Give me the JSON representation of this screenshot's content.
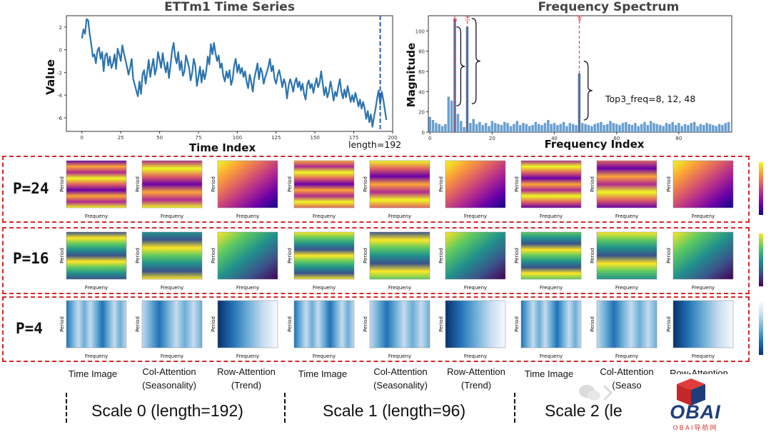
{
  "ts_chart": {
    "type": "line",
    "title": "ETTm1 Time Series",
    "xlabel": "Time Index",
    "ylabel": "Value",
    "xlim": [
      -10,
      200
    ],
    "ylim": [
      -7.2,
      3.0
    ],
    "xticks": [
      "0",
      "25",
      "50",
      "75",
      "100",
      "125",
      "150",
      "175",
      "200"
    ],
    "yticks": [
      "2",
      "0",
      "-2",
      "-4",
      "-6"
    ],
    "annotation": "length=192",
    "cutoff_x": 192,
    "values": [
      1.0,
      1.8,
      1.4,
      2.7,
      2.6,
      1.4,
      0.5,
      -0.6,
      -0.4,
      -1.2,
      -0.1,
      0.2,
      -0.8,
      -0.2,
      -1.9,
      -0.5,
      -0.3,
      -1.4,
      -0.6,
      -1.6,
      -1.2,
      -0.4,
      -1.7,
      0.1,
      -0.4,
      -1.0,
      0.4,
      -0.3,
      -0.9,
      -1.5,
      -2.2,
      -1.6,
      -0.8,
      -2.6,
      -3.1,
      -3.6,
      -4.1,
      -2.8,
      -3.9,
      -2.2,
      -1.8,
      -3.0,
      -2.0,
      -0.9,
      -2.4,
      -1.5,
      -0.8,
      -2.2,
      -1.6,
      -0.2,
      -0.9,
      -1.6,
      -0.3,
      -1.3,
      -2.0,
      -1.1,
      -2.5,
      -1.4,
      -0.1,
      0.6,
      -0.6,
      -1.2,
      -0.2,
      -1.8,
      -1.0,
      -2.3,
      -1.9,
      -0.5,
      -1.0,
      -1.6,
      -2.7,
      -2.0,
      -0.8,
      -1.4,
      -3.2,
      -2.4,
      -1.5,
      -2.9,
      -1.8,
      -2.6,
      -1.9,
      -0.6,
      -1.3,
      0.5,
      -0.4,
      0.6,
      -0.3,
      -1.0,
      -0.5,
      -1.6,
      -1.2,
      -2.3,
      -2.8,
      -1.9,
      -2.5,
      -1.8,
      -3.1,
      -2.6,
      -1.4,
      -0.8,
      -2.0,
      -1.3,
      -2.1,
      -1.6,
      -2.4,
      -1.9,
      -2.8,
      -3.4,
      -2.2,
      -2.9,
      -3.7,
      -2.5,
      -1.9,
      -1.2,
      -2.6,
      -1.6,
      -2.0,
      -3.0,
      -2.4,
      -2.0,
      -1.5,
      -0.8,
      -1.9,
      -1.4,
      -2.6,
      -3.0,
      -2.2,
      -1.8,
      -2.5,
      -3.3,
      -2.6,
      -3.0,
      -4.3,
      -3.2,
      -2.6,
      -3.0,
      -3.7,
      -2.9,
      -2.5,
      -3.3,
      -2.8,
      -3.6,
      -3.0,
      -3.9,
      -4.4,
      -3.1,
      -2.7,
      -3.4,
      -3.0,
      -3.8,
      -3.1,
      -2.5,
      -3.3,
      -2.9,
      -1.9,
      -3.0,
      -4.0,
      -3.3,
      -4.2,
      -3.7,
      -2.8,
      -3.5,
      -4.5,
      -3.7,
      -4.1,
      -3.3,
      -2.6,
      -3.7,
      -4.3,
      -3.5,
      -4.2,
      -3.2,
      -3.9,
      -4.6,
      -4.0,
      -4.6,
      -3.8,
      -4.3,
      -5.0,
      -4.4,
      -5.2,
      -4.6,
      -5.2,
      -6.1,
      -5.4,
      -6.4,
      -5.7,
      -6.8,
      -5.9,
      -5.2,
      -4.3,
      -3.6,
      -4.8,
      -3.7,
      -4.4,
      -5.3,
      -6.2
    ]
  },
  "fs_chart": {
    "type": "bar",
    "title": "Frequency Spectrum",
    "xlabel": "Frequency Index",
    "ylabel": "Magnitude",
    "xlim": [
      -0.5,
      97
    ],
    "ylim": [
      0,
      115
    ],
    "xticks": [
      "0",
      "20",
      "40",
      "60",
      "80"
    ],
    "yticks": [
      "0",
      "20",
      "40",
      "60",
      "80",
      "100"
    ],
    "values": [
      15,
      12,
      9,
      8,
      6,
      8,
      35,
      31,
      112,
      18,
      11,
      5,
      104,
      9,
      13,
      8,
      10,
      7,
      9,
      6,
      11,
      9,
      8,
      7,
      10,
      9,
      6,
      8,
      11,
      7,
      9,
      8,
      6,
      7,
      10,
      8,
      7,
      9,
      12,
      8,
      9,
      7,
      8,
      10,
      6,
      9,
      8,
      7,
      58,
      9,
      8,
      7,
      6,
      8,
      9,
      10,
      7,
      8,
      11,
      9,
      8,
      7,
      9,
      10,
      8,
      7,
      9,
      6,
      8,
      10,
      7,
      11,
      9,
      8,
      7,
      6,
      9,
      8,
      10,
      7,
      9,
      6,
      8,
      7,
      9,
      10,
      6,
      8,
      7,
      9,
      8,
      7,
      6,
      8,
      7,
      9,
      10
    ],
    "top_indices": [
      "8",
      "12",
      "48"
    ],
    "annotation": "Top3_freq=8, 12, 48"
  },
  "heatmap_axis": {
    "period": "Period",
    "frequency": "Frequeny"
  },
  "rows": [
    {
      "label": "P=24",
      "color": "#d05a6a",
      "cmap": "plasma"
    },
    {
      "label": "P=16",
      "color": "#1e9a8a",
      "cmap": "viridis"
    },
    {
      "label": "P=4",
      "color": "#2a6fb5",
      "cmap": "blues"
    }
  ],
  "captions": [
    {
      "line1": "Time Image",
      "line2": ""
    },
    {
      "line1": "Col-Attention",
      "line2": "(Seasonality)"
    },
    {
      "line1": "Row-Attention",
      "line2": "(Trend)"
    },
    {
      "line1": "Time Image",
      "line2": ""
    },
    {
      "line1": "Col-Attention",
      "line2": "(Seasonality)"
    },
    {
      "line1": "Row-Attention",
      "line2": "(Trend)"
    },
    {
      "line1": "Time Image",
      "line2": ""
    },
    {
      "line1": "Col-Attention",
      "line2": "(Seaso"
    },
    {
      "line1": "Row-Attention",
      "line2": ""
    }
  ],
  "scales": [
    "Scale 0 (length=192)",
    "Scale 1 (length=96)",
    "Scale 2 (le"
  ],
  "logo": {
    "text": "OBAI",
    "sub": "OBAI导航网"
  }
}
